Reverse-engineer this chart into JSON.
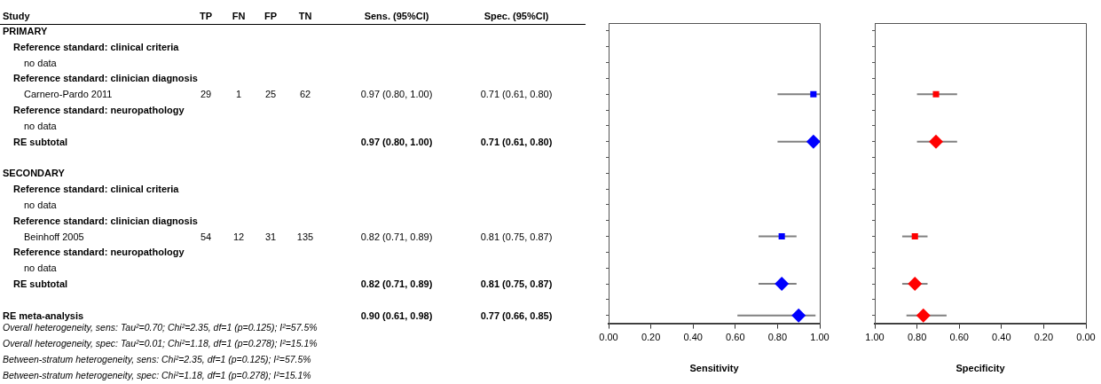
{
  "chart_data": [
    {
      "type": "other",
      "categories": [
        "Study",
        "TP",
        "FN",
        "FP",
        "TN",
        "Sens. (95%CI)",
        "Spec. (95%CI)"
      ],
      "y_categories": [
        "PRIMARY",
        "Reference standard: clinical criteria",
        "no data",
        "Reference standard: clinician diagnosis",
        "Carnero-Pardo 2011",
        "Reference standard: neuropathology",
        "no data",
        "RE subtotal",
        null,
        "SECONDARY",
        "Reference standard: clinical criteria",
        "no data",
        "Reference standard: clinician diagnosis",
        "Beinhoff 2005",
        "Reference standard: neuropathology",
        "no data",
        "RE subtotal",
        null,
        "RE meta-analysis"
      ],
      "cell_labels": [
        [
          null,
          null,
          null,
          null,
          null,
          null
        ],
        [
          null,
          null,
          null,
          null,
          null,
          null
        ],
        [
          null,
          null,
          null,
          null,
          null,
          null
        ],
        [
          null,
          null,
          null,
          null,
          null,
          null
        ],
        [
          "29",
          "1",
          "25",
          "62",
          "0.97 (0.80, 1.00)",
          "0.71 (0.61, 0.80)"
        ],
        [
          null,
          null,
          null,
          null,
          null,
          null
        ],
        [
          null,
          null,
          null,
          null,
          null,
          null
        ],
        [
          null,
          null,
          null,
          null,
          "0.97 (0.80, 1.00)",
          "0.71 (0.61, 0.80)"
        ],
        [
          null,
          null,
          null,
          null,
          null,
          null
        ],
        [
          null,
          null,
          null,
          null,
          null,
          null
        ],
        [
          null,
          null,
          null,
          null,
          null,
          null
        ],
        [
          null,
          null,
          null,
          null,
          null,
          null
        ],
        [
          null,
          null,
          null,
          null,
          null,
          null
        ],
        [
          "54",
          "12",
          "31",
          "135",
          "0.82 (0.71, 0.89)",
          "0.81 (0.75, 0.87)"
        ],
        [
          null,
          null,
          null,
          null,
          null,
          null
        ],
        [
          null,
          null,
          null,
          null,
          null,
          null
        ],
        [
          null,
          null,
          null,
          null,
          "0.82 (0.71, 0.89)",
          "0.81 (0.75, 0.87)"
        ],
        [
          null,
          null,
          null,
          null,
          null,
          null
        ],
        [
          null,
          null,
          null,
          null,
          "0.90 (0.61, 0.98)",
          "0.77 (0.66, 0.85)"
        ]
      ],
      "annotations": [
        "Overall heterogeneity, sens: Tau²=0.70; Chi²=2.35, df=1 (p=0.125); I²=57.5%",
        "Overall heterogeneity, spec: Tau²=0.01; Chi²=1.18, df=1 (p=0.278); I²=15.1%",
        "Between-stratum heterogeneity, sens: Chi²=2.35, df=1 (p=0.125); I²=57.5%",
        "Between-stratum heterogeneity, spec: Chi²=1.18, df=1 (p=0.278); I²=15.1%"
      ]
    },
    {
      "type": "scatter",
      "orientation": "horizontal",
      "xlabel": "Sensitivity",
      "categories": [
        null,
        null,
        null,
        null,
        null,
        null,
        null,
        null,
        null,
        null,
        null,
        null,
        null,
        null,
        null,
        null,
        null,
        null,
        null
      ],
      "xlim": [
        0,
        1
      ],
      "xticks": [
        {
          "value": 0,
          "label": "0.00"
        },
        {
          "value": 0.2,
          "label": "0.20"
        },
        {
          "value": 0.4,
          "label": "0.40"
        },
        {
          "value": 0.6,
          "label": "0.60"
        },
        {
          "value": 0.8,
          "label": "0.80"
        },
        {
          "value": 1,
          "label": "1.00"
        }
      ],
      "tick_labels": "x",
      "grid": false,
      "legend": false,
      "series": [
        {
          "marker": "square",
          "color": "#0000ff",
          "values": [
            null,
            null,
            null,
            null,
            0.97,
            null,
            null,
            null,
            null,
            null,
            null,
            null,
            null,
            0.82,
            null,
            null,
            null,
            null,
            null
          ],
          "errors": [
            null,
            null,
            null,
            null,
            [
              0.8,
              1.0
            ],
            null,
            null,
            null,
            null,
            null,
            null,
            null,
            null,
            [
              0.71,
              0.89
            ],
            null,
            null,
            null,
            null,
            null
          ]
        },
        {
          "marker": "diamond",
          "color": "#0000ff",
          "values": [
            null,
            null,
            null,
            null,
            null,
            null,
            null,
            0.97,
            null,
            null,
            null,
            null,
            null,
            null,
            null,
            null,
            0.82,
            null,
            0.9
          ],
          "errors": [
            null,
            null,
            null,
            null,
            null,
            null,
            null,
            [
              0.8,
              1.0
            ],
            null,
            null,
            null,
            null,
            null,
            null,
            null,
            null,
            [
              0.71,
              0.89
            ],
            null,
            [
              0.61,
              0.98
            ]
          ]
        }
      ]
    },
    {
      "type": "scatter",
      "orientation": "horizontal",
      "xlabel": "Specificity",
      "categories": [
        null,
        null,
        null,
        null,
        null,
        null,
        null,
        null,
        null,
        null,
        null,
        null,
        null,
        null,
        null,
        null,
        null,
        null,
        null
      ],
      "xlim": [
        1,
        0
      ],
      "xticks": [
        {
          "value": 1,
          "label": "1.00"
        },
        {
          "value": 0.8,
          "label": "0.80"
        },
        {
          "value": 0.6,
          "label": "0.60"
        },
        {
          "value": 0.4,
          "label": "0.40"
        },
        {
          "value": 0.2,
          "label": "0.20"
        },
        {
          "value": 0,
          "label": "0.00"
        }
      ],
      "tick_labels": "x",
      "grid": false,
      "legend": false,
      "series": [
        {
          "marker": "square",
          "color": "#ff0000",
          "values": [
            null,
            null,
            null,
            null,
            0.71,
            null,
            null,
            null,
            null,
            null,
            null,
            null,
            null,
            0.81,
            null,
            null,
            null,
            null,
            null
          ],
          "errors": [
            null,
            null,
            null,
            null,
            [
              0.61,
              0.8
            ],
            null,
            null,
            null,
            null,
            null,
            null,
            null,
            null,
            [
              0.75,
              0.87
            ],
            null,
            null,
            null,
            null,
            null
          ]
        },
        {
          "marker": "diamond",
          "color": "#ff0000",
          "values": [
            null,
            null,
            null,
            null,
            null,
            null,
            null,
            0.71,
            null,
            null,
            null,
            null,
            null,
            null,
            null,
            null,
            0.81,
            null,
            0.77
          ],
          "errors": [
            null,
            null,
            null,
            null,
            null,
            null,
            null,
            [
              0.61,
              0.8
            ],
            null,
            null,
            null,
            null,
            null,
            null,
            null,
            null,
            [
              0.75,
              0.87
            ],
            null,
            [
              0.66,
              0.85
            ]
          ]
        }
      ]
    }
  ]
}
